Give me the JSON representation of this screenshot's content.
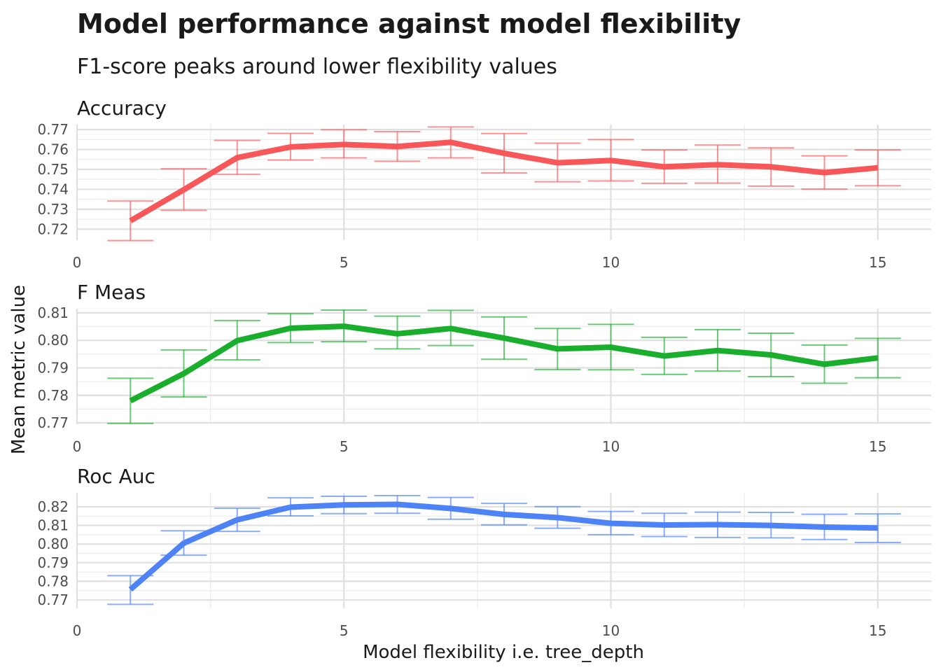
{
  "chart_data": {
    "type": "line",
    "title": "Model performance against model flexibility",
    "subtitle": "F1-score peaks around lower flexibility values",
    "xlabel": "Model flexibility i.e. tree_depth",
    "ylabel": "Mean metric value",
    "xlim": [
      0,
      16
    ],
    "x_ticks": [
      0,
      5,
      10,
      15
    ],
    "grid": true,
    "legend": "none",
    "x": [
      1,
      2,
      3,
      4,
      5,
      6,
      7,
      8,
      9,
      10,
      11,
      12,
      13,
      14,
      15
    ],
    "series": [
      {
        "name": "Accuracy",
        "color": "#F8575A",
        "ylim": [
          0.7145,
          0.7725
        ],
        "y_ticks": [
          0.72,
          0.73,
          0.74,
          0.75,
          0.76,
          0.77
        ],
        "y_tick_labels": [
          "0.72",
          "0.73",
          "0.74",
          "0.75",
          "0.76",
          "0.77"
        ],
        "values": [
          0.7242,
          0.7398,
          0.7559,
          0.7613,
          0.7625,
          0.7615,
          0.7636,
          0.7581,
          0.7533,
          0.7545,
          0.7513,
          0.7524,
          0.7513,
          0.7484,
          0.7508
        ],
        "error_low": [
          0.7143,
          0.7295,
          0.7475,
          0.7547,
          0.7558,
          0.7541,
          0.7558,
          0.7482,
          0.7438,
          0.7442,
          0.743,
          0.7431,
          0.7416,
          0.7401,
          0.7418
        ],
        "error_high": [
          0.7341,
          0.7503,
          0.7646,
          0.7681,
          0.7699,
          0.769,
          0.7713,
          0.768,
          0.7632,
          0.765,
          0.7598,
          0.7622,
          0.7608,
          0.7568,
          0.7598
        ]
      },
      {
        "name": "F Meas",
        "color": "#1AAE2D",
        "ylim": [
          0.7695,
          0.8115
        ],
        "y_ticks": [
          0.77,
          0.78,
          0.79,
          0.8,
          0.81
        ],
        "y_tick_labels": [
          "0.77",
          "0.78",
          "0.79",
          "0.80",
          "0.81"
        ],
        "values": [
          0.778,
          0.7879,
          0.7999,
          0.8044,
          0.8051,
          0.8024,
          0.8043,
          0.8008,
          0.7969,
          0.7975,
          0.7943,
          0.7963,
          0.7947,
          0.7913,
          0.7936
        ],
        "error_low": [
          0.7698,
          0.7794,
          0.7929,
          0.7992,
          0.7995,
          0.7969,
          0.7981,
          0.7931,
          0.7894,
          0.7893,
          0.7876,
          0.7888,
          0.7868,
          0.7844,
          0.7864
        ],
        "error_high": [
          0.7862,
          0.7965,
          0.8072,
          0.8097,
          0.811,
          0.8088,
          0.8109,
          0.8085,
          0.8043,
          0.8058,
          0.8011,
          0.8039,
          0.8026,
          0.7983,
          0.8007
        ]
      },
      {
        "name": "Roc Auc",
        "color": "#4E82F7",
        "ylim": [
          0.7655,
          0.8275
        ],
        "y_ticks": [
          0.77,
          0.78,
          0.79,
          0.8,
          0.81,
          0.82
        ],
        "y_tick_labels": [
          "0.77",
          "0.78",
          "0.79",
          "0.80",
          "0.81",
          "0.82"
        ],
        "values": [
          0.7756,
          0.8005,
          0.813,
          0.8198,
          0.821,
          0.8213,
          0.8191,
          0.8159,
          0.8142,
          0.8111,
          0.8102,
          0.8104,
          0.81,
          0.8091,
          0.8086
        ],
        "error_low": [
          0.7676,
          0.794,
          0.8068,
          0.8151,
          0.8163,
          0.8165,
          0.8133,
          0.8103,
          0.8085,
          0.805,
          0.804,
          0.8035,
          0.8033,
          0.8024,
          0.8008
        ],
        "error_high": [
          0.783,
          0.8071,
          0.8192,
          0.8248,
          0.8256,
          0.826,
          0.825,
          0.8218,
          0.8201,
          0.8175,
          0.8165,
          0.8171,
          0.817,
          0.816,
          0.8162
        ]
      }
    ]
  }
}
